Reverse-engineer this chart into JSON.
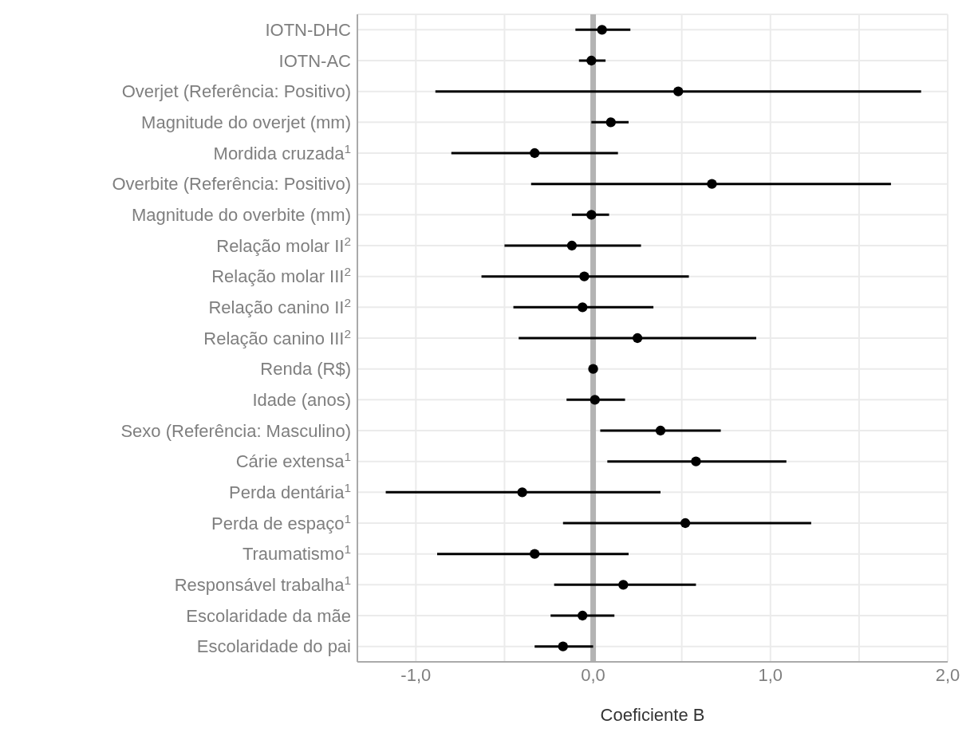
{
  "chart_data": {
    "type": "scatter",
    "orientation": "horizontal",
    "xlabel": "Coeficiente B",
    "categories": [
      "IOTN-DHC",
      "IOTN-AC",
      "Overjet (Referência: Positivo)",
      "Magnitude do overjet (mm)",
      "Mordida cruzada$^{1}$",
      "Overbite (Referência: Positivo)",
      "Magnitude do overbite (mm)",
      "Relação molar II$^{2}$",
      "Relação molar III$^{2}$",
      "Relação canino II$^{2}$",
      "Relação canino III$^{2}$",
      "Renda (R$)",
      "Idade (anos)",
      "Sexo (Referência: Masculino)",
      "Cárie extensa$^{1}$",
      "Perda dentária$^{1}$",
      "Perda de espaço$^{1}$",
      "Traumatismo$^{1}$",
      "Responsável trabalha$^{1}$",
      "Escolaridade da mãe",
      "Escolaridade do pai"
    ],
    "values": [
      0.05,
      -0.01,
      0.48,
      0.1,
      -0.33,
      0.67,
      -0.01,
      -0.12,
      -0.05,
      -0.06,
      0.25,
      0.0,
      0.01,
      0.38,
      0.58,
      -0.4,
      0.52,
      -0.33,
      0.17,
      -0.06,
      -0.17
    ],
    "errors": [
      [
        -0.1,
        0.21
      ],
      [
        -0.08,
        0.07
      ],
      [
        -0.89,
        1.85
      ],
      [
        -0.01,
        0.2
      ],
      [
        -0.8,
        0.14
      ],
      [
        -0.35,
        1.68
      ],
      [
        -0.12,
        0.09
      ],
      [
        -0.5,
        0.27
      ],
      [
        -0.63,
        0.54
      ],
      [
        -0.45,
        0.34
      ],
      [
        -0.42,
        0.92
      ],
      [
        0.0,
        0.0
      ],
      [
        -0.15,
        0.18
      ],
      [
        0.04,
        0.72
      ],
      [
        0.08,
        1.09
      ],
      [
        -1.17,
        0.38
      ],
      [
        -0.17,
        1.23
      ],
      [
        -0.88,
        0.2
      ],
      [
        -0.22,
        0.58
      ],
      [
        -0.24,
        0.12
      ],
      [
        -0.33,
        0.0
      ]
    ],
    "color": "#000000",
    "marker": "circle",
    "xlim": [
      -1.33,
      2.0
    ],
    "xticks": [
      {
        "value": -1,
        "label": "-1,0"
      },
      {
        "value": -0.5,
        "label": null
      },
      {
        "value": 0,
        "label": "0,0"
      },
      {
        "value": 0.5,
        "label": null
      },
      {
        "value": 1,
        "label": "1,0"
      },
      {
        "value": 1.5,
        "label": null
      },
      {
        "value": 2,
        "label": "2,0"
      }
    ],
    "grid": true,
    "ref_lines": [
      {
        "axis": "x",
        "value": 0,
        "color": "#b3b3b3"
      }
    ]
  }
}
